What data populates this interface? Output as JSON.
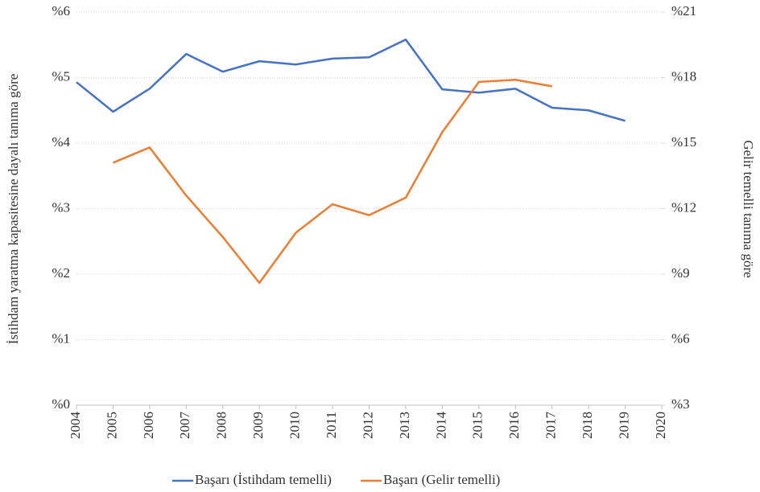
{
  "chart_data": {
    "type": "line",
    "y_label": "İstihdam yaratma kapasitesine dayalı tanıma göre",
    "y2_label": "Gelir temelli tanıma göre",
    "categories": [
      "2004",
      "2005",
      "2006",
      "2007",
      "2008",
      "2009",
      "2010",
      "2011",
      "2012",
      "2013",
      "2014",
      "2015",
      "2016",
      "2017",
      "2018",
      "2019",
      "2020"
    ],
    "series": [
      {
        "name": "Başarı (İstihdam temelli)",
        "color": "#4472c4",
        "values": [
          4.93,
          4.48,
          4.83,
          5.36,
          5.09,
          5.25,
          5.2,
          5.29,
          5.31,
          5.58,
          4.82,
          4.77,
          4.83,
          4.54,
          4.5,
          4.34,
          null
        ]
      },
      {
        "name": "Başarı (Gelir temelli)",
        "color": "#ed7d31",
        "axis": "y2",
        "values": [
          null,
          14.1,
          14.8,
          12.6,
          10.7,
          8.6,
          10.9,
          12.2,
          11.7,
          12.5,
          15.5,
          17.8,
          17.9,
          17.6,
          null,
          null,
          null
        ]
      }
    ],
    "ylim": [
      0,
      6
    ],
    "yticks": [
      {
        "value": 0,
        "label": "%0"
      },
      {
        "value": 1,
        "label": "%1"
      },
      {
        "value": 2,
        "label": "%2"
      },
      {
        "value": 3,
        "label": "%3"
      },
      {
        "value": 4,
        "label": "%4"
      },
      {
        "value": 5,
        "label": "%5"
      },
      {
        "value": 6,
        "label": "%6"
      }
    ],
    "y2lim": [
      3,
      21
    ],
    "y2ticks": [
      {
        "value": 3,
        "label": "%3"
      },
      {
        "value": 6,
        "label": "%6"
      },
      {
        "value": 9,
        "label": "%9"
      },
      {
        "value": 12,
        "label": "%12"
      },
      {
        "value": 15,
        "label": "%15"
      },
      {
        "value": 18,
        "label": "%18"
      },
      {
        "value": 21,
        "label": "%21"
      }
    ],
    "grid": true,
    "legend": "bottom"
  }
}
